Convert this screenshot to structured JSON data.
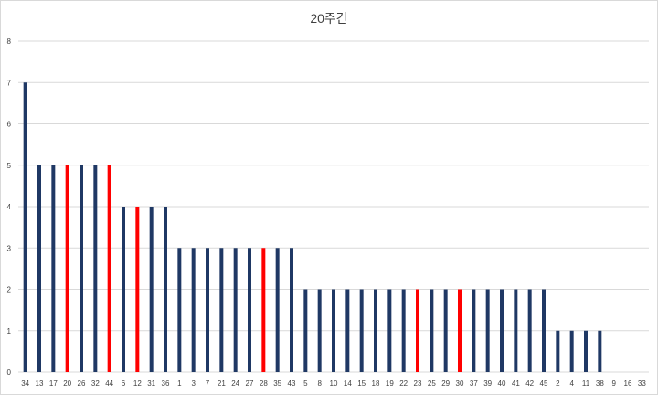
{
  "chart_data": {
    "type": "bar",
    "title": "20주간",
    "xlabel": "",
    "ylabel": "",
    "ylim": [
      0,
      8
    ],
    "yticks": [
      0,
      1,
      2,
      3,
      4,
      5,
      6,
      7,
      8
    ],
    "grid": true,
    "legend": "none",
    "colors": {
      "default": "#1f3864",
      "highlight": "#ff0000",
      "grid": "#d9d9d9"
    },
    "categories": [
      "34",
      "13",
      "17",
      "20",
      "26",
      "32",
      "44",
      "6",
      "12",
      "31",
      "36",
      "1",
      "3",
      "7",
      "21",
      "24",
      "27",
      "28",
      "35",
      "43",
      "5",
      "8",
      "10",
      "14",
      "15",
      "18",
      "19",
      "22",
      "23",
      "25",
      "29",
      "30",
      "37",
      "39",
      "40",
      "41",
      "42",
      "45",
      "2",
      "4",
      "11",
      "38",
      "9",
      "16",
      "33"
    ],
    "values": [
      7,
      5,
      5,
      5,
      5,
      5,
      5,
      4,
      4,
      4,
      4,
      3,
      3,
      3,
      3,
      3,
      3,
      3,
      3,
      3,
      2,
      2,
      2,
      2,
      2,
      2,
      2,
      2,
      2,
      2,
      2,
      2,
      2,
      2,
      2,
      2,
      2,
      2,
      1,
      1,
      1,
      1,
      0,
      0,
      0
    ],
    "highlighted": [
      "20",
      "44",
      "12",
      "28",
      "23",
      "30"
    ]
  }
}
